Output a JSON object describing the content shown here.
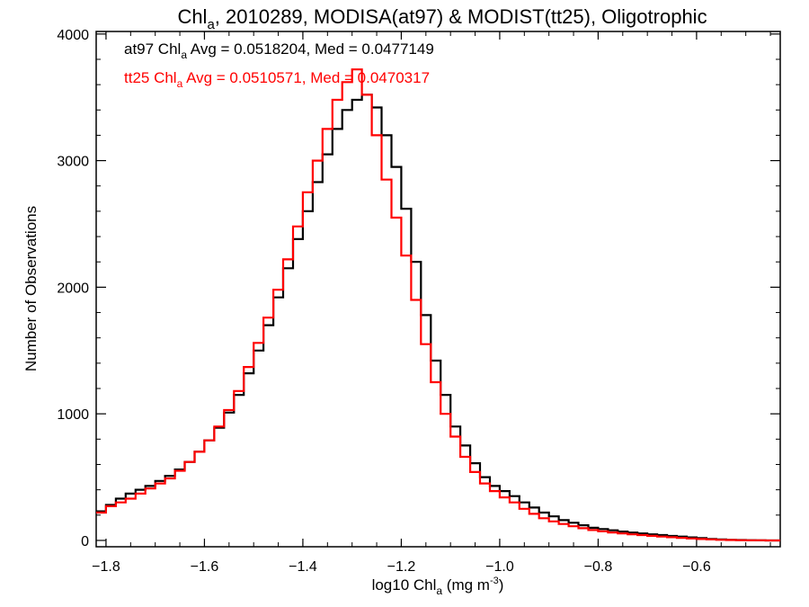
{
  "chart_data": {
    "type": "line",
    "style": "histogram-step",
    "title": {
      "prefix": "Chl",
      "subscript": "a",
      "rest": ", 2010289, MODISA(at97) & MODIST(tt25), Oligotrophic"
    },
    "xlabel": {
      "prefix": "log10 Chl",
      "subscript": "a",
      "middle": " (mg m",
      "superscript": "-3",
      "suffix": ")"
    },
    "ylabel": "Number of Observations",
    "xlim": [
      -1.82,
      -0.43
    ],
    "ylim": [
      -50,
      4020
    ],
    "xticks": [
      -1.8,
      -1.6,
      -1.4,
      -1.2,
      -1.0,
      -0.8,
      -0.6
    ],
    "xtick_labels": [
      "−1.8",
      "−1.6",
      "−1.4",
      "−1.2",
      "−1.0",
      "−0.8",
      "−0.6"
    ],
    "yticks": [
      0,
      1000,
      2000,
      3000,
      4000
    ],
    "ytick_labels": [
      "0",
      "1000",
      "2000",
      "3000",
      "4000"
    ],
    "grid": false,
    "annotations": [
      {
        "series": "at97",
        "prefix": "at97 Chl",
        "subscript": "a",
        "rest": " Avg = 0.0518204, Med = 0.0477149",
        "color": "#000000"
      },
      {
        "series": "tt25",
        "prefix": "tt25 Chl",
        "subscript": "a",
        "rest": " Avg = 0.0510571, Med = 0.0470317",
        "color": "#ff0000"
      }
    ],
    "x": [
      -1.82,
      -1.8,
      -1.78,
      -1.76,
      -1.74,
      -1.72,
      -1.7,
      -1.68,
      -1.66,
      -1.64,
      -1.62,
      -1.6,
      -1.58,
      -1.56,
      -1.54,
      -1.52,
      -1.5,
      -1.48,
      -1.46,
      -1.44,
      -1.42,
      -1.4,
      -1.38,
      -1.36,
      -1.34,
      -1.32,
      -1.3,
      -1.28,
      -1.26,
      -1.24,
      -1.22,
      -1.2,
      -1.18,
      -1.16,
      -1.14,
      -1.12,
      -1.1,
      -1.08,
      -1.06,
      -1.04,
      -1.02,
      -1.0,
      -0.98,
      -0.96,
      -0.94,
      -0.92,
      -0.9,
      -0.88,
      -0.86,
      -0.84,
      -0.82,
      -0.8,
      -0.78,
      -0.76,
      -0.74,
      -0.72,
      -0.7,
      -0.68,
      -0.66,
      -0.64,
      -0.62,
      -0.6,
      -0.58,
      -0.56,
      -0.54,
      -0.52,
      -0.5,
      -0.48,
      -0.46,
      -0.44
    ],
    "series": [
      {
        "name": "at97",
        "color": "#000000",
        "values": [
          230,
          280,
          330,
          370,
          400,
          430,
          470,
          510,
          560,
          620,
          700,
          790,
          890,
          1010,
          1150,
          1320,
          1500,
          1700,
          1920,
          2150,
          2380,
          2600,
          2830,
          3050,
          3250,
          3400,
          3480,
          3520,
          3420,
          3200,
          2950,
          2620,
          2200,
          1780,
          1420,
          1150,
          900,
          750,
          610,
          500,
          430,
          390,
          350,
          300,
          260,
          220,
          190,
          160,
          140,
          120,
          100,
          90,
          80,
          70,
          62,
          55,
          48,
          42,
          35,
          30,
          24,
          18,
          12,
          8,
          5,
          3,
          2,
          1,
          0,
          0
        ]
      },
      {
        "name": "tt25",
        "color": "#ff0000",
        "values": [
          220,
          270,
          300,
          330,
          370,
          410,
          450,
          490,
          550,
          620,
          700,
          790,
          900,
          1030,
          1180,
          1370,
          1560,
          1760,
          1980,
          2220,
          2480,
          2750,
          3000,
          3250,
          3480,
          3620,
          3720,
          3520,
          3200,
          2850,
          2550,
          2250,
          1900,
          1550,
          1250,
          1000,
          820,
          660,
          540,
          450,
          390,
          340,
          300,
          250,
          210,
          175,
          150,
          130,
          112,
          96,
          82,
          72,
          63,
          55,
          48,
          42,
          36,
          30,
          25,
          20,
          15,
          11,
          8,
          5,
          3,
          2,
          1,
          1,
          0,
          0
        ]
      }
    ]
  }
}
